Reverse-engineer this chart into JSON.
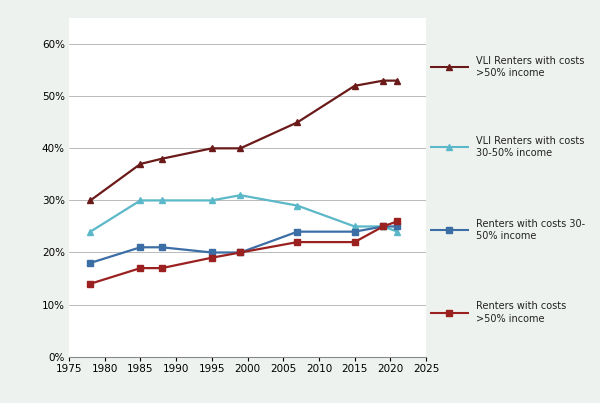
{
  "years": [
    1978,
    1985,
    1988,
    1995,
    1999,
    2007,
    2015,
    2019,
    2021
  ],
  "vli_severe": [
    30,
    37,
    38,
    40,
    40,
    45,
    52,
    53,
    53
  ],
  "vli_moderate": [
    24,
    30,
    30,
    30,
    31,
    29,
    25,
    25,
    24
  ],
  "all_moderate": [
    18,
    21,
    21,
    20,
    20,
    24,
    24,
    25,
    25
  ],
  "all_severe": [
    14,
    17,
    17,
    19,
    20,
    22,
    22,
    25,
    26
  ],
  "vli_severe_color": "#6B1A1A",
  "vli_moderate_color": "#5BB8C8",
  "all_moderate_color": "#3C6EA6",
  "all_severe_color": "#9B2020",
  "legend_bg": "#D0D0D0",
  "plot_bg": "#FFFFFF",
  "outer_bg": "#EEF2EE",
  "xlim": [
    1975,
    2025
  ],
  "ylim": [
    0,
    0.65
  ],
  "xticks": [
    1975,
    1980,
    1985,
    1990,
    1995,
    2000,
    2005,
    2010,
    2015,
    2020,
    2025
  ],
  "yticks": [
    0.0,
    0.1,
    0.2,
    0.3,
    0.4,
    0.5,
    0.6
  ],
  "ytick_labels": [
    "0%",
    "10%",
    "20%",
    "30%",
    "40%",
    "50%",
    "60%"
  ],
  "legend_labels": [
    "VLI Renters with costs\n>50% income",
    "VLI Renters with costs\n30-50% income",
    "Renters with costs 30-\n50% income",
    "Renters with costs\n>50% income"
  ]
}
